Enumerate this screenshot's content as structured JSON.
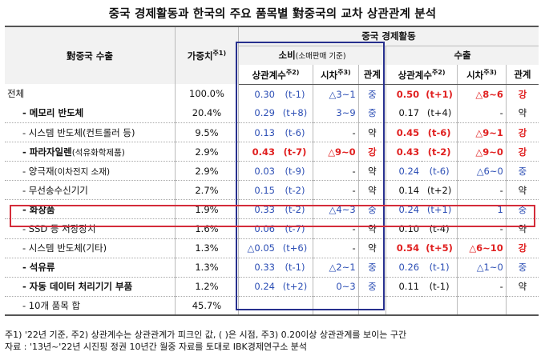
{
  "title": "중국 경제활동과 한국의 주요 품목별 對중국의 교차 상관관계 분석",
  "header": {
    "col_item": "對중국 수출",
    "col_weight": "가중치",
    "col_weight_sup": "주1)",
    "group_china": "중국 경제활동",
    "group_consumption": "소비",
    "group_consumption_sub": "(소매판매 기준)",
    "group_export": "수출",
    "corr": "상관계수",
    "corr_sup": "주2)",
    "lag": "시차",
    "lag_sup": "주3)",
    "relation": "관계"
  },
  "rows": [
    {
      "name": "전체",
      "weight": "100.0%",
      "c_corr": "0.30",
      "c_t": "(t-1)",
      "c_lag": "△3~1",
      "c_rel": "중",
      "e_corr": "0.50",
      "e_t": "(t+1)",
      "e_lag": "△8~6",
      "e_rel": "강"
    },
    {
      "name": "- 메모리 반도체",
      "weight": "20.4%",
      "c_corr": "0.29",
      "c_t": "(t+8)",
      "c_lag": "3~9",
      "c_rel": "중",
      "e_corr": "0.17",
      "e_t": "(t+4)",
      "e_lag": "-",
      "e_rel": "약"
    },
    {
      "name": "- 시스템 반도체(컨트롤러 등)",
      "weight": "9.5%",
      "c_corr": "0.13",
      "c_t": "(t-6)",
      "c_lag": "-",
      "c_rel": "약",
      "e_corr": "0.45",
      "e_t": "(t-6)",
      "e_lag": "△9~1",
      "e_rel": "강"
    },
    {
      "name": "- 파라자일렌",
      "name_sub": "(석유화학제품)",
      "weight": "2.9%",
      "c_corr": "0.43",
      "c_t": "(t-7)",
      "c_lag": "△9~0",
      "c_rel": "강",
      "e_corr": "0.43",
      "e_t": "(t-2)",
      "e_lag": "△9~0",
      "e_rel": "강"
    },
    {
      "name": "- 양극재",
      "name_sub": "(이차전지 소재)",
      "weight": "2.9%",
      "c_corr": "0.03",
      "c_t": "(t-9)",
      "c_lag": "-",
      "c_rel": "약",
      "e_corr": "0.24",
      "e_t": "(t-6)",
      "e_lag": "△6~0",
      "e_rel": "중"
    },
    {
      "name": "- 무선송수신기기",
      "weight": "2.7%",
      "c_corr": "0.15",
      "c_t": "(t-2)",
      "c_lag": "-",
      "c_rel": "약",
      "e_corr": "0.14",
      "e_t": "(t+2)",
      "e_lag": "-",
      "e_rel": "약"
    },
    {
      "name": "- 화장품",
      "weight": "1.9%",
      "c_corr": "0.33",
      "c_t": "(t-2)",
      "c_lag": "△4~3",
      "c_rel": "중",
      "e_corr": "0.24",
      "e_t": "(t+1)",
      "e_lag": "1",
      "e_rel": "중"
    },
    {
      "name": "- SSD 등 저장장치",
      "weight": "1.6%",
      "c_corr": "0.06",
      "c_t": "(t-7)",
      "c_lag": "-",
      "c_rel": "약",
      "e_corr": "0.10",
      "e_t": "(t-4)",
      "e_lag": "-",
      "e_rel": "약"
    },
    {
      "name": "- 시스템 반도체(기타)",
      "weight": "1.3%",
      "c_corr": "△0.05",
      "c_t": "(t+6)",
      "c_lag": "-",
      "c_rel": "약",
      "e_corr": "0.54",
      "e_t": "(t+5)",
      "e_lag": "△6~10",
      "e_rel": "강"
    },
    {
      "name": "- 석유류",
      "weight": "1.3%",
      "c_corr": "0.33",
      "c_t": "(t-1)",
      "c_lag": "△2~1",
      "c_rel": "중",
      "e_corr": "0.26",
      "e_t": "(t-1)",
      "e_lag": "△1~0",
      "e_rel": "중"
    },
    {
      "name": "- 자동 데이터 처리기기 부품",
      "weight": "1.2%",
      "c_corr": "0.24",
      "c_t": "(t+2)",
      "c_lag": "0~3",
      "c_rel": "중",
      "e_corr": "0.11",
      "e_t": "(t-1)",
      "e_lag": "-",
      "e_rel": "약"
    },
    {
      "name": "- 10개 품목 합",
      "weight": "45.7%",
      "c_corr": "",
      "c_t": "",
      "c_lag": "",
      "c_rel": "",
      "e_corr": "",
      "e_t": "",
      "e_lag": "",
      "e_rel": ""
    }
  ],
  "notes": {
    "note1": "주1) '22년 기준, 주2) 상관계수는 상관관계가 피크인 값, ( )은 시점, 주3) 0.20이상 상관관계를 보이는 구간",
    "note2": "자료 : '13년~'22년 시진핑 정권 10년간 월중 자료를 토대로 IBK경제연구소 분석"
  },
  "colors": {
    "blue_text": "#2d4fb5",
    "red_text": "#e02020",
    "blue_box": "#27308e",
    "red_box": "#d42c3a"
  }
}
